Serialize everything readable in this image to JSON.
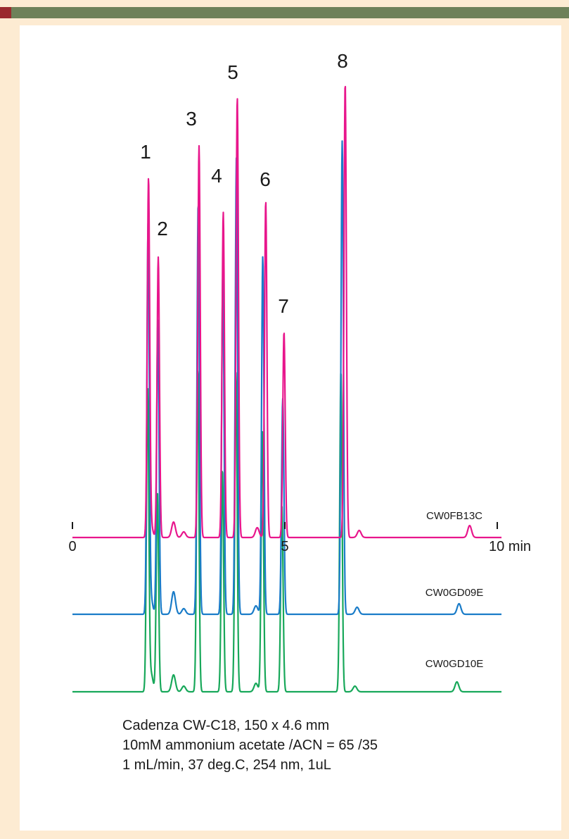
{
  "chart_data": {
    "type": "line",
    "x_unit": "min",
    "xlim": [
      0,
      10
    ],
    "x_ticks": [
      {
        "value": 0,
        "label": "0"
      },
      {
        "value": 5,
        "label": "5"
      },
      {
        "value": 10,
        "label": "10 min"
      }
    ],
    "grid": false,
    "peak_labels": [
      {
        "label": "1",
        "x": 1.75
      },
      {
        "label": "2",
        "x": 1.98
      },
      {
        "label": "3",
        "x": 2.95
      },
      {
        "label": "4",
        "x": 3.55
      },
      {
        "label": "5",
        "x": 3.85
      },
      {
        "label": "6",
        "x": 4.5
      },
      {
        "label": "7",
        "x": 4.95
      },
      {
        "label": "8",
        "x": 6.35
      }
    ],
    "series": [
      {
        "name": "CW0FB13C",
        "color": "#e8168c",
        "peaks": [
          {
            "x": 1.79,
            "height": 500
          },
          {
            "x": 1.84,
            "height": 20
          },
          {
            "x": 2.02,
            "height": 398
          },
          {
            "x": 2.38,
            "height": 22
          },
          {
            "x": 2.62,
            "height": 8
          },
          {
            "x": 2.98,
            "height": 556
          },
          {
            "x": 3.55,
            "height": 462
          },
          {
            "x": 3.88,
            "height": 625
          },
          {
            "x": 4.35,
            "height": 14
          },
          {
            "x": 4.55,
            "height": 478
          },
          {
            "x": 4.98,
            "height": 292
          },
          {
            "x": 6.42,
            "height": 646
          },
          {
            "x": 6.75,
            "height": 10
          },
          {
            "x": 9.35,
            "height": 17
          }
        ]
      },
      {
        "name": "CW0GD09E",
        "color": "#1a7cc8",
        "peaks": [
          {
            "x": 1.78,
            "height": 545
          },
          {
            "x": 1.84,
            "height": 24
          },
          {
            "x": 2.01,
            "height": 418
          },
          {
            "x": 2.38,
            "height": 32
          },
          {
            "x": 2.62,
            "height": 8
          },
          {
            "x": 2.96,
            "height": 584
          },
          {
            "x": 3.54,
            "height": 483
          },
          {
            "x": 3.86,
            "height": 650
          },
          {
            "x": 4.32,
            "height": 12
          },
          {
            "x": 4.48,
            "height": 508
          },
          {
            "x": 4.95,
            "height": 306
          },
          {
            "x": 6.35,
            "height": 672
          },
          {
            "x": 6.7,
            "height": 10
          },
          {
            "x": 9.1,
            "height": 15
          }
        ]
      },
      {
        "name": "CW0GD10E",
        "color": "#18a85a",
        "peaks": [
          {
            "x": 1.77,
            "height": 425
          },
          {
            "x": 1.85,
            "height": 26
          },
          {
            "x": 2.0,
            "height": 283
          },
          {
            "x": 2.38,
            "height": 24
          },
          {
            "x": 2.62,
            "height": 8
          },
          {
            "x": 2.95,
            "height": 458
          },
          {
            "x": 3.53,
            "height": 315
          },
          {
            "x": 3.85,
            "height": 453
          },
          {
            "x": 4.32,
            "height": 12
          },
          {
            "x": 4.47,
            "height": 369
          },
          {
            "x": 4.93,
            "height": 265
          },
          {
            "x": 6.32,
            "height": 456
          },
          {
            "x": 6.65,
            "height": 8
          },
          {
            "x": 9.05,
            "height": 14
          }
        ]
      }
    ]
  },
  "conditions": {
    "line1": "Cadenza CW-C18, 150 x 4.6 mm",
    "line2": "10mM ammonium acetate /ACN = 65 /35",
    "line3": "1 mL/min, 37 deg.C, 254 nm, 1uL"
  }
}
